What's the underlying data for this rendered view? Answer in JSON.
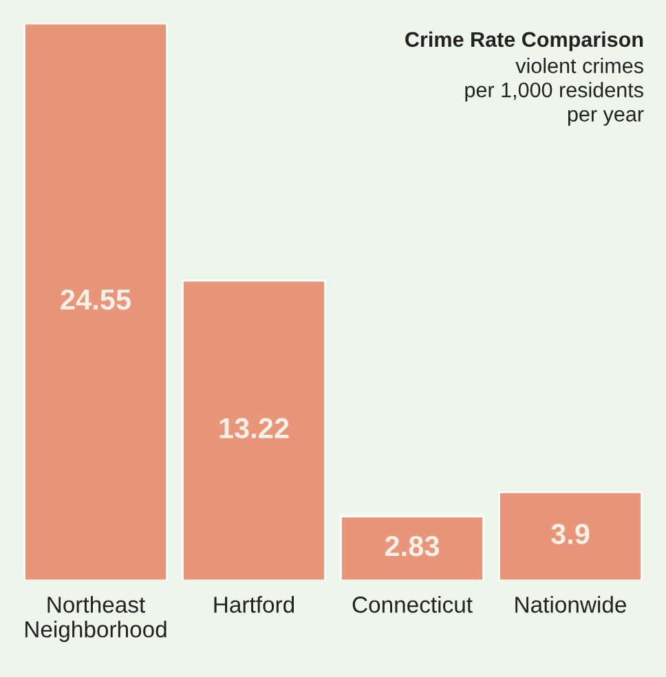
{
  "chart_data": {
    "type": "bar",
    "title": "Crime Rate Comparison",
    "subtitle": "violent crimes\nper 1,000 residents\nper year",
    "categories": [
      "Northeast\nNeighborhood",
      "Hartford",
      "Connecticut",
      "Nationwide"
    ],
    "values": [
      24.55,
      13.22,
      2.83,
      3.9
    ],
    "color": "#e8957a",
    "data_labels": true,
    "grid": false,
    "legend": false
  }
}
